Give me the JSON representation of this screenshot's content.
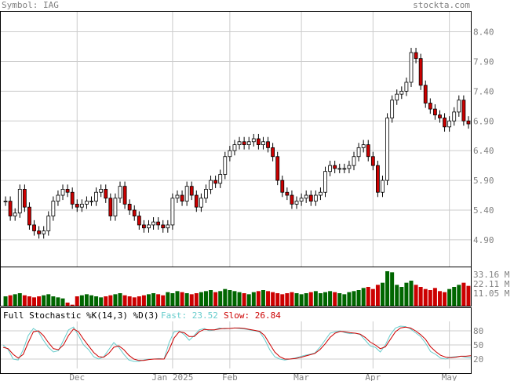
{
  "header": {
    "symbol_label": "Symbol: IAG",
    "site": "stockta.com"
  },
  "stoch": {
    "title": "Full Stochastic %K(14,3) %D(3)",
    "fast_label": "Fast: 23.52",
    "slow_label": "Slow: 26.84"
  },
  "colors": {
    "up": "#ffffff",
    "down": "#cc0000",
    "vol_up": "#006600",
    "vol_down": "#cc0000",
    "fast": "#66cccc",
    "slow": "#cc0000",
    "grid": "#cccccc",
    "text": "#808080"
  },
  "chart_data": [
    {
      "type": "candlestick",
      "title": "Symbol: IAG",
      "y_ticks": [
        8.4,
        7.9,
        7.4,
        6.9,
        6.4,
        5.9,
        5.4,
        4.9
      ],
      "ylim": [
        4.45,
        8.75
      ],
      "x_tick_labels": [
        "Dec",
        "Jan 2025",
        "Feb",
        "Mar",
        "Apr",
        "May"
      ],
      "x_tick_index": [
        15,
        35,
        47,
        62,
        77,
        93
      ],
      "grid": true,
      "closes": [
        5.55,
        5.3,
        5.35,
        5.75,
        5.45,
        5.15,
        5.05,
        5.0,
        5.05,
        5.3,
        5.55,
        5.65,
        5.75,
        5.7,
        5.5,
        5.45,
        5.5,
        5.55,
        5.55,
        5.7,
        5.75,
        5.6,
        5.3,
        5.6,
        5.8,
        5.5,
        5.4,
        5.3,
        5.15,
        5.1,
        5.15,
        5.2,
        5.15,
        5.1,
        5.15,
        5.6,
        5.65,
        5.55,
        5.8,
        5.65,
        5.45,
        5.6,
        5.75,
        5.9,
        5.85,
        6.0,
        6.3,
        6.4,
        6.5,
        6.55,
        6.5,
        6.55,
        6.6,
        6.5,
        6.55,
        6.45,
        6.3,
        5.9,
        5.7,
        5.65,
        5.5,
        5.55,
        5.6,
        5.65,
        5.55,
        5.65,
        5.7,
        6.05,
        6.15,
        6.1,
        6.1,
        6.1,
        6.15,
        6.3,
        6.45,
        6.5,
        6.3,
        6.15,
        5.7,
        5.9,
        6.95,
        7.25,
        7.35,
        7.4,
        7.55,
        8.05,
        7.95,
        7.5,
        7.2,
        7.1,
        7.0,
        6.95,
        6.8,
        6.9,
        7.05,
        7.25,
        6.9,
        6.85
      ],
      "volume_ticks_M": [
        33.16,
        22.11,
        11.05
      ],
      "volume_M": [
        9,
        10,
        11,
        12,
        10,
        9,
        8,
        9,
        10,
        11,
        9,
        8,
        7,
        3,
        1,
        9,
        10,
        11,
        10,
        9,
        8,
        9,
        10,
        11,
        12,
        10,
        9,
        8,
        9,
        10,
        11,
        12,
        11,
        10,
        13,
        12,
        14,
        13,
        12,
        11,
        12,
        13,
        14,
        15,
        13,
        14,
        16,
        15,
        14,
        13,
        12,
        11,
        13,
        14,
        15,
        14,
        13,
        12,
        11,
        12,
        13,
        12,
        11,
        12,
        13,
        14,
        12,
        13,
        14,
        13,
        12,
        11,
        13,
        14,
        15,
        17,
        18,
        16,
        20,
        22,
        33,
        32,
        20,
        18,
        22,
        24,
        20,
        18,
        16,
        15,
        17,
        14,
        13,
        16,
        18,
        20,
        22,
        19
      ],
      "stoch_ticks": [
        80,
        50,
        20
      ],
      "stoch_fast": [
        50,
        40,
        20,
        18,
        40,
        70,
        85,
        78,
        60,
        45,
        35,
        38,
        60,
        82,
        88,
        70,
        50,
        40,
        25,
        20,
        25,
        40,
        55,
        45,
        30,
        18,
        15,
        15,
        18,
        20,
        20,
        21,
        20,
        55,
        78,
        80,
        72,
        60,
        70,
        82,
        85,
        80,
        82,
        86,
        84,
        85,
        86,
        85,
        84,
        82,
        80,
        78,
        62,
        40,
        25,
        20,
        18,
        20,
        22,
        25,
        28,
        30,
        33,
        45,
        60,
        75,
        78,
        80,
        76,
        74,
        75,
        72,
        60,
        48,
        45,
        35,
        50,
        72,
        86,
        90,
        89,
        84,
        76,
        68,
        54,
        36,
        30,
        22,
        20,
        24,
        25,
        26,
        24,
        23
      ],
      "stoch_slow": [
        45,
        42,
        30,
        22,
        30,
        55,
        78,
        80,
        70,
        55,
        42,
        40,
        50,
        70,
        84,
        78,
        62,
        48,
        34,
        25,
        24,
        32,
        45,
        48,
        40,
        28,
        20,
        17,
        17,
        19,
        20,
        20,
        20,
        40,
        65,
        78,
        76,
        68,
        68,
        78,
        83,
        82,
        82,
        84,
        85,
        85,
        86,
        86,
        85,
        83,
        81,
        79,
        70,
        52,
        35,
        25,
        20,
        20,
        21,
        23,
        26,
        29,
        32,
        40,
        52,
        66,
        75,
        79,
        78,
        76,
        75,
        73,
        66,
        56,
        50,
        42,
        46,
        62,
        78,
        86,
        88,
        86,
        80,
        72,
        62,
        46,
        36,
        28,
        24,
        23,
        24,
        26,
        26,
        27
      ]
    }
  ]
}
